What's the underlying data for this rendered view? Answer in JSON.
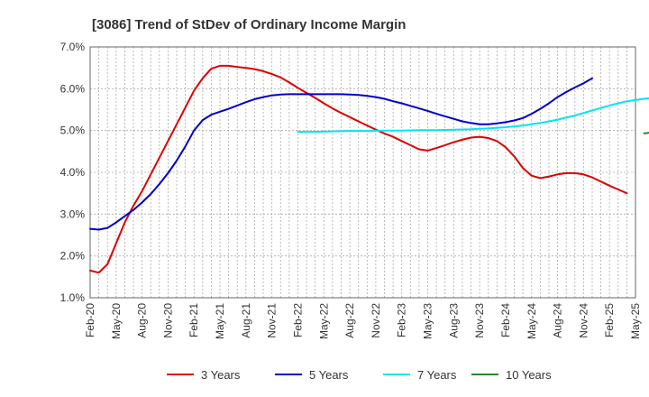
{
  "chart_data": {
    "type": "line",
    "title": "[3086]  Trend of StDev of Ordinary Income Margin",
    "xlabel": "",
    "ylabel": "",
    "ylim": [
      1.0,
      7.0
    ],
    "yticks": [
      "1.0%",
      "2.0%",
      "3.0%",
      "4.0%",
      "5.0%",
      "6.0%",
      "7.0%"
    ],
    "xticks": [
      "Feb-20",
      "May-20",
      "Aug-20",
      "Nov-20",
      "Feb-21",
      "May-21",
      "Aug-21",
      "Nov-21",
      "Feb-22",
      "May-22",
      "Aug-22",
      "Nov-22",
      "Feb-23",
      "May-23",
      "Aug-23",
      "Nov-23",
      "Feb-24",
      "May-24",
      "Aug-24",
      "Nov-24",
      "Feb-25",
      "May-25"
    ],
    "x_unit": "month index from Feb-20",
    "grid": true,
    "legend_position": "bottom",
    "series": [
      {
        "name": "3 Years",
        "color": "#dd0000",
        "points": [
          [
            0,
            1.65
          ],
          [
            1,
            1.6
          ],
          [
            2,
            1.8
          ],
          [
            3,
            2.3
          ],
          [
            4,
            2.8
          ],
          [
            5,
            3.2
          ],
          [
            6,
            3.55
          ],
          [
            7,
            3.95
          ],
          [
            8,
            4.35
          ],
          [
            9,
            4.75
          ],
          [
            10,
            5.15
          ],
          [
            11,
            5.55
          ],
          [
            12,
            5.95
          ],
          [
            13,
            6.25
          ],
          [
            14,
            6.48
          ],
          [
            15,
            6.55
          ],
          [
            16,
            6.55
          ],
          [
            17,
            6.52
          ],
          [
            18,
            6.5
          ],
          [
            19,
            6.47
          ],
          [
            20,
            6.42
          ],
          [
            21,
            6.35
          ],
          [
            22,
            6.27
          ],
          [
            23,
            6.15
          ],
          [
            24,
            6.02
          ],
          [
            25,
            5.9
          ],
          [
            26,
            5.78
          ],
          [
            27,
            5.65
          ],
          [
            28,
            5.53
          ],
          [
            29,
            5.42
          ],
          [
            30,
            5.32
          ],
          [
            31,
            5.22
          ],
          [
            32,
            5.12
          ],
          [
            33,
            5.02
          ],
          [
            34,
            4.93
          ],
          [
            35,
            4.85
          ],
          [
            36,
            4.75
          ],
          [
            37,
            4.65
          ],
          [
            38,
            4.55
          ],
          [
            39,
            4.52
          ],
          [
            40,
            4.58
          ],
          [
            41,
            4.65
          ],
          [
            42,
            4.72
          ],
          [
            43,
            4.78
          ],
          [
            44,
            4.83
          ],
          [
            45,
            4.85
          ],
          [
            46,
            4.82
          ],
          [
            47,
            4.75
          ],
          [
            48,
            4.6
          ],
          [
            49,
            4.38
          ],
          [
            50,
            4.1
          ],
          [
            51,
            3.92
          ],
          [
            52,
            3.86
          ],
          [
            53,
            3.9
          ],
          [
            54,
            3.95
          ],
          [
            55,
            3.98
          ],
          [
            56,
            3.98
          ],
          [
            57,
            3.95
          ],
          [
            58,
            3.88
          ],
          [
            59,
            3.78
          ],
          [
            60,
            3.68
          ],
          [
            61,
            3.59
          ],
          [
            62,
            3.5
          ]
        ]
      },
      {
        "name": "5 Years",
        "color": "#0000cc",
        "points": [
          [
            0,
            2.65
          ],
          [
            1,
            2.63
          ],
          [
            2,
            2.67
          ],
          [
            3,
            2.8
          ],
          [
            4,
            2.95
          ],
          [
            5,
            3.1
          ],
          [
            6,
            3.28
          ],
          [
            7,
            3.48
          ],
          [
            8,
            3.72
          ],
          [
            9,
            3.98
          ],
          [
            10,
            4.28
          ],
          [
            11,
            4.62
          ],
          [
            12,
            5.0
          ],
          [
            13,
            5.25
          ],
          [
            14,
            5.38
          ],
          [
            15,
            5.45
          ],
          [
            16,
            5.52
          ],
          [
            17,
            5.6
          ],
          [
            18,
            5.68
          ],
          [
            19,
            5.75
          ],
          [
            20,
            5.8
          ],
          [
            21,
            5.84
          ],
          [
            22,
            5.86
          ],
          [
            23,
            5.87
          ],
          [
            24,
            5.87
          ],
          [
            25,
            5.87
          ],
          [
            26,
            5.87
          ],
          [
            27,
            5.87
          ],
          [
            28,
            5.87
          ],
          [
            29,
            5.87
          ],
          [
            30,
            5.86
          ],
          [
            31,
            5.85
          ],
          [
            32,
            5.83
          ],
          [
            33,
            5.8
          ],
          [
            34,
            5.76
          ],
          [
            35,
            5.7
          ],
          [
            36,
            5.65
          ],
          [
            37,
            5.59
          ],
          [
            38,
            5.53
          ],
          [
            39,
            5.47
          ],
          [
            40,
            5.4
          ],
          [
            41,
            5.34
          ],
          [
            42,
            5.28
          ],
          [
            43,
            5.22
          ],
          [
            44,
            5.18
          ],
          [
            45,
            5.15
          ],
          [
            46,
            5.15
          ],
          [
            47,
            5.17
          ],
          [
            48,
            5.2
          ],
          [
            49,
            5.24
          ],
          [
            50,
            5.3
          ],
          [
            51,
            5.4
          ],
          [
            52,
            5.52
          ],
          [
            53,
            5.65
          ],
          [
            54,
            5.8
          ],
          [
            55,
            5.92
          ],
          [
            56,
            6.03
          ],
          [
            57,
            6.13
          ],
          [
            58,
            6.25
          ]
        ]
      },
      {
        "name": "7 Years",
        "color": "#00e5ee",
        "points": [
          [
            24,
            4.97
          ],
          [
            26,
            4.97
          ],
          [
            28,
            4.98
          ],
          [
            30,
            4.99
          ],
          [
            32,
            4.99
          ],
          [
            34,
            5.0
          ],
          [
            36,
            5.0
          ],
          [
            38,
            5.01
          ],
          [
            40,
            5.01
          ],
          [
            42,
            5.02
          ],
          [
            44,
            5.03
          ],
          [
            46,
            5.05
          ],
          [
            48,
            5.08
          ],
          [
            50,
            5.12
          ],
          [
            52,
            5.18
          ],
          [
            54,
            5.26
          ],
          [
            56,
            5.36
          ],
          [
            58,
            5.48
          ],
          [
            60,
            5.6
          ],
          [
            62,
            5.7
          ],
          [
            64,
            5.76
          ],
          [
            66,
            5.8
          ]
        ]
      },
      {
        "name": "10 Years",
        "color": "#228b22",
        "points": [
          [
            64,
            4.93
          ],
          [
            65,
            4.96
          ],
          [
            66,
            4.98
          ]
        ]
      }
    ]
  }
}
